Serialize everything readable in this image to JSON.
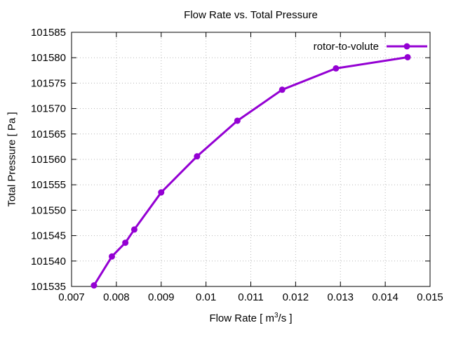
{
  "chart_data": {
    "type": "line",
    "title": "Flow Rate vs. Total Pressure",
    "xlabel": {
      "prefix": "Flow Rate [ m",
      "sup": "3",
      "suffix": "/s ]"
    },
    "ylabel": "Total Pressure [ Pa ]",
    "xlim": [
      0.007,
      0.015
    ],
    "ylim": [
      101535,
      101585
    ],
    "xticks": [
      "0.007",
      "0.008",
      "0.009",
      "0.01",
      "0.011",
      "0.012",
      "0.013",
      "0.014",
      "0.015"
    ],
    "yticks": [
      "101535",
      "101540",
      "101545",
      "101550",
      "101555",
      "101560",
      "101565",
      "101570",
      "101575",
      "101580",
      "101585"
    ],
    "grid": true,
    "legend_position": "top-right-inside",
    "series": [
      {
        "name": "rotor-to-volute",
        "color": "#9400d3",
        "marker": "filled-circle",
        "x": [
          0.0075,
          0.0079,
          0.0082,
          0.0084,
          0.009,
          0.0098,
          0.0107,
          0.0117,
          0.0129,
          0.0145
        ],
        "y": [
          101535.2,
          101540.9,
          101543.6,
          101546.2,
          101553.5,
          101560.6,
          101567.6,
          101573.7,
          101577.9,
          101580.1
        ]
      }
    ]
  },
  "colors": {
    "background": "#ffffff",
    "axis": "#000000",
    "grid": "#b8b8b8",
    "text": "#000000",
    "series1": "#9400d3"
  }
}
